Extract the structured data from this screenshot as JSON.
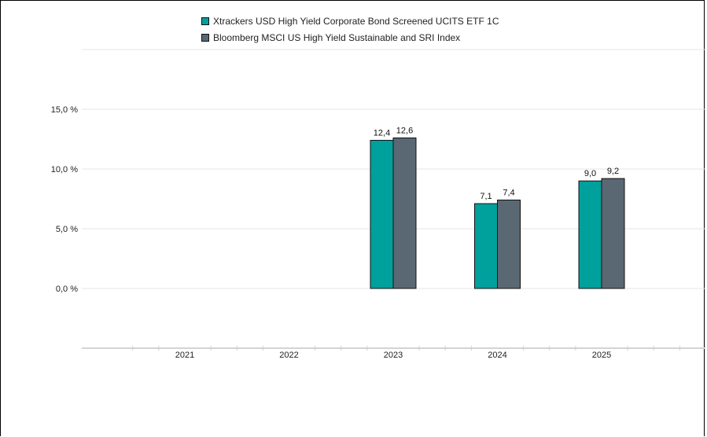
{
  "chart_data": {
    "type": "bar",
    "title": "",
    "xlabel": "",
    "ylabel": "",
    "categories": [
      "2021",
      "2022",
      "2023",
      "2024",
      "2025"
    ],
    "series": [
      {
        "name": "Xtrackers USD High Yield Corporate Bond Screened UCITS ETF 1C",
        "color": "#00a09c",
        "values": [
          null,
          null,
          12.4,
          7.1,
          9.0
        ],
        "labels": [
          "",
          "",
          "12,4",
          "7,1",
          "9,0"
        ]
      },
      {
        "name": "Bloomberg MSCI US High Yield Sustainable and SRI Index",
        "color": "#5a6874",
        "values": [
          null,
          null,
          12.6,
          7.4,
          9.2
        ],
        "labels": [
          "",
          "",
          "12,6",
          "7,4",
          "9,2"
        ]
      }
    ],
    "ylim": [
      -5,
      20
    ],
    "yticks": [
      0,
      5,
      10,
      15
    ],
    "ytick_labels": [
      "0,0 %",
      "5,0 %",
      "10,0 %",
      "15,0 %"
    ],
    "grid": true,
    "legend_position": "top"
  }
}
